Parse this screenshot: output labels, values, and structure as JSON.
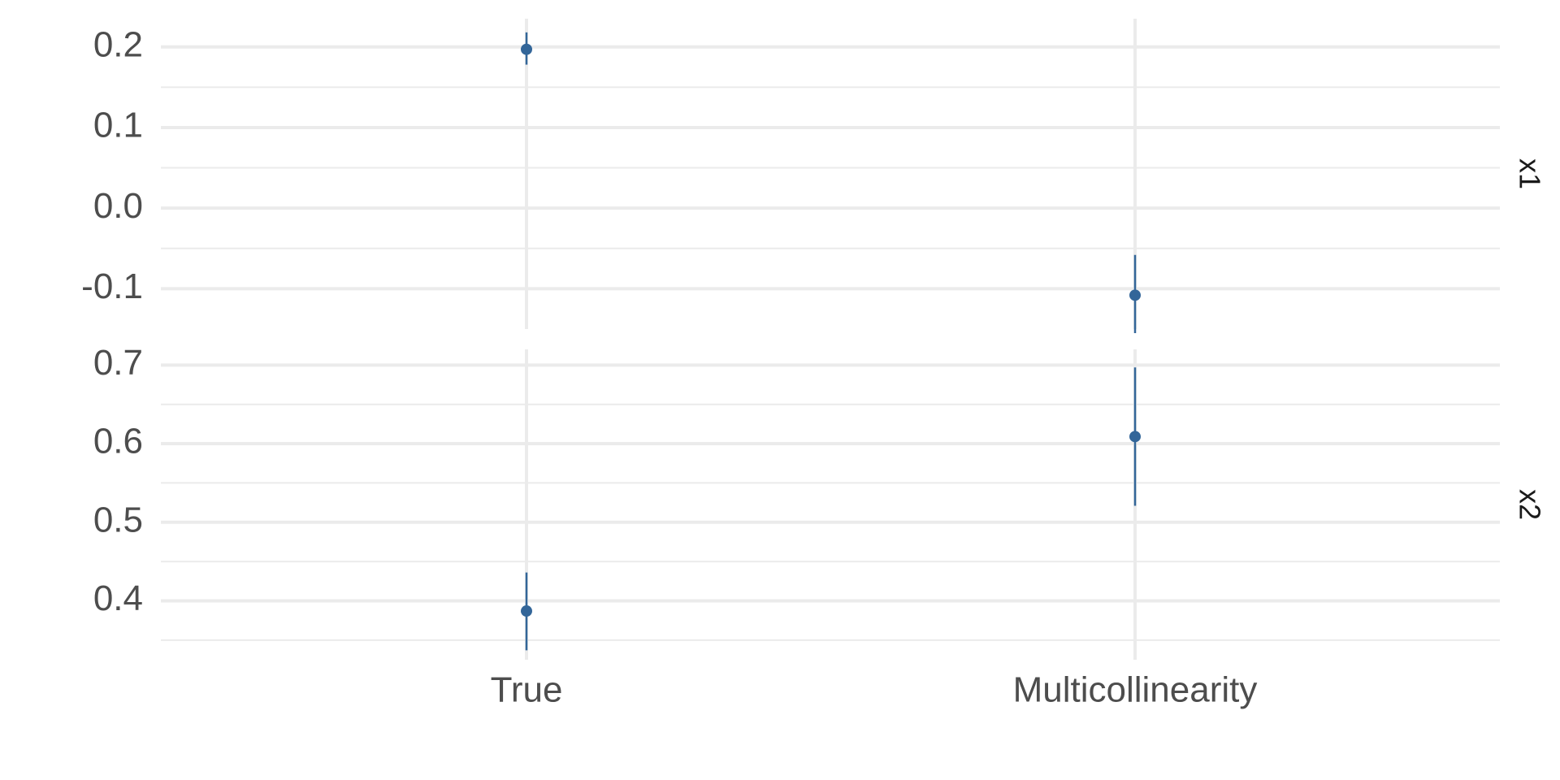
{
  "chart_data": {
    "type": "errorbar",
    "layout": "faceted-vertical",
    "categories": [
      "True",
      "Multicollinearity"
    ],
    "grid": true,
    "colors": {
      "series": "#336699",
      "grid": "#ebebeb",
      "text": "#4d4d4d"
    },
    "facets": [
      {
        "label": "x1",
        "ylim": [
          -0.15,
          0.235
        ],
        "yticks": [
          -0.1,
          0.0,
          0.1,
          0.2
        ],
        "ytick_labels": [
          "-0.1",
          "0.0",
          "0.1",
          "0.2"
        ],
        "points": [
          {
            "category": "True",
            "y": 0.197,
            "ymin": 0.178,
            "ymax": 0.218
          },
          {
            "category": "Multicollinearity",
            "y": -0.108,
            "ymin": -0.155,
            "ymax": -0.058
          }
        ]
      },
      {
        "label": "x2",
        "ylim": [
          0.325,
          0.72
        ],
        "yticks": [
          0.4,
          0.5,
          0.6,
          0.7
        ],
        "ytick_labels": [
          "0.4",
          "0.5",
          "0.6",
          "0.7"
        ],
        "points": [
          {
            "category": "True",
            "y": 0.387,
            "ymin": 0.337,
            "ymax": 0.436
          },
          {
            "category": "Multicollinearity",
            "y": 0.609,
            "ymin": 0.521,
            "ymax": 0.697
          }
        ]
      }
    ]
  }
}
